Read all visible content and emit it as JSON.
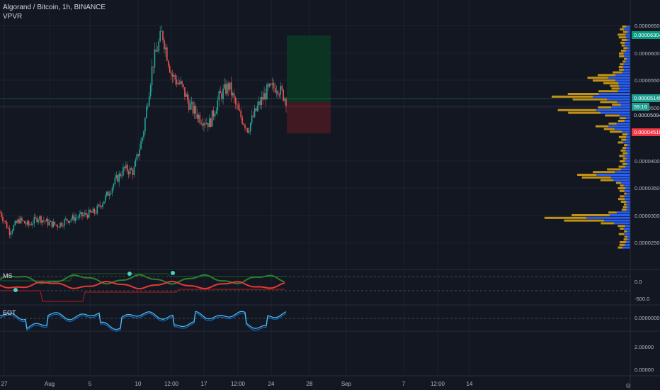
{
  "header": {
    "symbol_title": "Algorand / Bitcoin, 1h, BINANCE",
    "indicator_1": "VPVR"
  },
  "indicators": {
    "ms_label": "MS",
    "eot_label": "EOT"
  },
  "price_axis": {
    "ticks": [
      "0.00006500",
      "0.00006000",
      "0.00005500",
      "0.00005000",
      "0.00004000",
      "0.00003500",
      "0.00003000",
      "0.00002500"
    ],
    "badges": [
      {
        "text": "0.00006304",
        "color": "#089981"
      },
      {
        "text": "0.00005149",
        "color": "#1e9e90"
      },
      {
        "text": "59:16",
        "color": "#1e9e90"
      },
      {
        "text": "0.00005094",
        "color": "#131722"
      },
      {
        "text": "0.00004519",
        "color": "#f23645"
      }
    ]
  },
  "ms_axis": {
    "ticks": [
      "0.0",
      "-500.0"
    ]
  },
  "eot_axis": {
    "ticks": [
      "0.00000000"
    ]
  },
  "lower_axis": {
    "ticks": [
      "2.00000",
      "0.00000"
    ]
  },
  "time_axis": {
    "ticks": [
      "27",
      "Aug",
      "5",
      "10",
      "12:00",
      "17",
      "12:00",
      "24",
      "28",
      "Sep",
      "7",
      "12:00",
      "14"
    ]
  },
  "colors": {
    "background": "#131722",
    "up": "#26a69a",
    "down": "#ef5350",
    "vol_up": "#2962ff",
    "vol_down": "#d4a017",
    "grid": "#2a2e39"
  },
  "icons": {
    "settings": "gear-icon"
  },
  "chart_data": {
    "type": "candlestick",
    "title": "Algorand / Bitcoin, 1h, BINANCE",
    "ylabel": "",
    "price_range": [
      2.4e-05,
      6.55e-05
    ],
    "close_path": [
      [
        "27",
        3.05e-05
      ],
      [
        "28",
        2.68e-05
      ],
      [
        "29",
        2.9e-05
      ],
      [
        "30",
        2.8e-05
      ],
      [
        "31",
        2.95e-05
      ],
      [
        "Aug",
        2.85e-05
      ],
      [
        "2",
        2.8e-05
      ],
      [
        "3",
        2.9e-05
      ],
      [
        "4",
        2.95e-05
      ],
      [
        "5",
        3e-05
      ],
      [
        "6",
        3.05e-05
      ],
      [
        "7",
        3.3e-05
      ],
      [
        "8",
        3.6e-05
      ],
      [
        "9",
        3.85e-05
      ],
      [
        "10",
        3.8e-05
      ],
      [
        "11",
        4.5e-05
      ],
      [
        "12",
        5.8e-05
      ],
      [
        "12:00",
        6.4e-05
      ],
      [
        "13",
        5.6e-05
      ],
      [
        "14",
        5.4e-05
      ],
      [
        "15",
        5e-05
      ],
      [
        "16",
        4.8e-05
      ],
      [
        "17",
        4.7e-05
      ],
      [
        "18",
        5.2e-05
      ],
      [
        "19",
        5.4e-05
      ],
      [
        "20",
        4.9e-05
      ],
      [
        "21",
        4.6e-05
      ],
      [
        "22",
        5e-05
      ],
      [
        "23",
        5.3e-05
      ],
      [
        "24",
        5.4e-05
      ],
      [
        "25",
        5.15e-05
      ]
    ],
    "position_box": {
      "entry": 5.15e-05,
      "target": 6.3e-05,
      "stop": 4.52e-05
    },
    "last_price": "0.00005149"
  }
}
